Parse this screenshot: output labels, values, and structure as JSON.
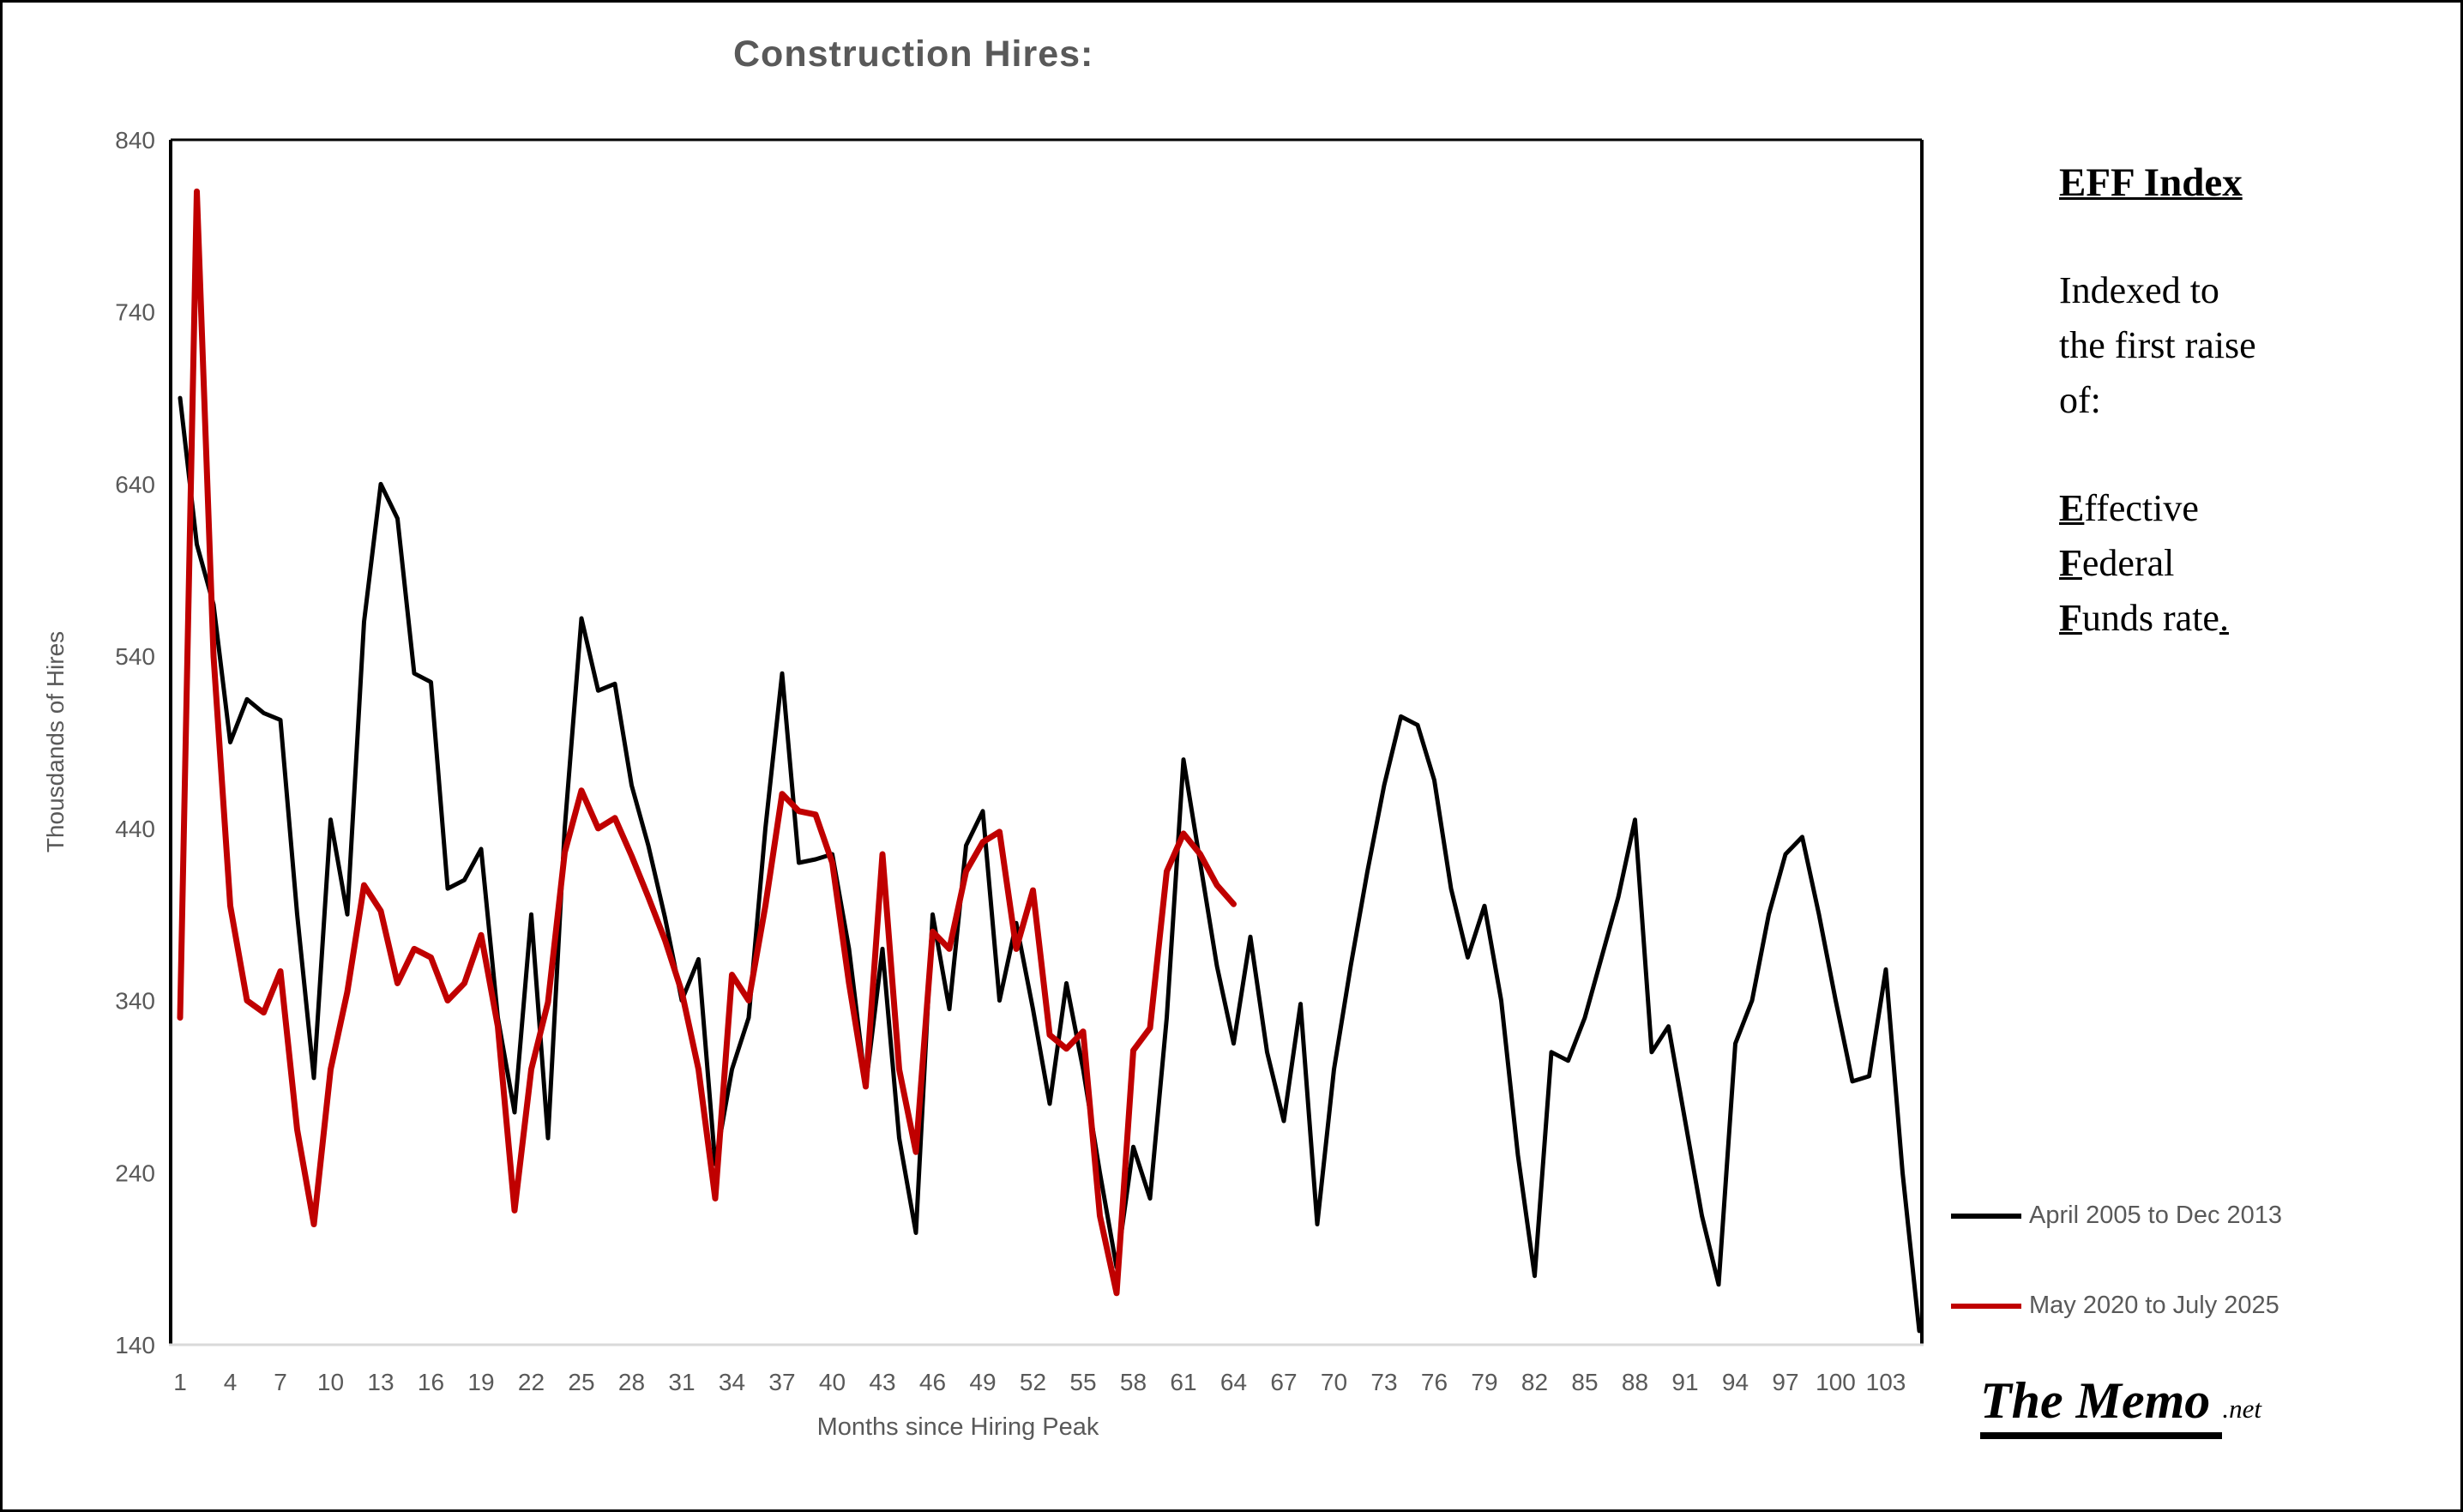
{
  "title": "Construction Hires:",
  "eff_note": {
    "heading": "EFF Index",
    "body_lines": [
      "Indexed to",
      "the first raise",
      "of:"
    ],
    "effective_lead": "E",
    "effective_rest": "ffective",
    "federal_lead": "F",
    "federal_rest": "ederal",
    "funds_lead": "F",
    "funds_rest": "unds rate",
    "period": "."
  },
  "legend": {
    "items": [
      {
        "label": "April 2005 to Dec 2013",
        "color": "#000000"
      },
      {
        "label": "May 2020 to July 2025",
        "color": "#C00000"
      }
    ]
  },
  "logo": {
    "main": "The Memo",
    "suffix": ".net"
  },
  "chart_data": {
    "type": "line",
    "title": "Construction Hires:",
    "xlabel": "Months since Hiring Peak",
    "ylabel": "Thousdands of Hires",
    "ylim": [
      140,
      840
    ],
    "xlim": [
      1,
      105
    ],
    "y_ticks": [
      840,
      740,
      640,
      540,
      440,
      340,
      240,
      140
    ],
    "x_ticks": [
      1,
      4,
      7,
      10,
      13,
      16,
      19,
      22,
      25,
      28,
      31,
      34,
      37,
      40,
      43,
      46,
      49,
      52,
      55,
      58,
      61,
      64,
      67,
      70,
      73,
      76,
      79,
      82,
      85,
      88,
      91,
      94,
      97,
      100,
      103
    ],
    "grid": false,
    "legend_position": "right",
    "axis_colors": {
      "text": "#595959",
      "bottom_line": "#D9D9D9",
      "border": "#000000"
    },
    "series": [
      {
        "name": "April 2005 to Dec 2013",
        "color": "#000000",
        "stroke_width": 5,
        "start_month": 1,
        "values": [
          690,
          605,
          570,
          490,
          515,
          507,
          503,
          390,
          295,
          445,
          390,
          560,
          640,
          620,
          530,
          525,
          405,
          410,
          428,
          330,
          275,
          390,
          260,
          440,
          562,
          520,
          524,
          465,
          430,
          388,
          340,
          364,
          245,
          300,
          330,
          440,
          530,
          420,
          422,
          425,
          370,
          290,
          370,
          260,
          205,
          390,
          335,
          430,
          450,
          340,
          385,
          335,
          280,
          350,
          300,
          240,
          185,
          255,
          225,
          330,
          480,
          420,
          360,
          315,
          377,
          310,
          270,
          338,
          210,
          300,
          360,
          415,
          465,
          505,
          500,
          468,
          405,
          365,
          395,
          340,
          250,
          180,
          310,
          305,
          330,
          365,
          400,
          445,
          310,
          325,
          270,
          215,
          175,
          315,
          340,
          390,
          425,
          435,
          390,
          340,
          293,
          296,
          358,
          240,
          148
        ]
      },
      {
        "name": "May 2020 to July 2025",
        "color": "#C00000",
        "stroke_width": 7,
        "start_month": 1,
        "values": [
          330,
          810,
          540,
          395,
          340,
          333,
          357,
          265,
          210,
          300,
          345,
          407,
          392,
          350,
          370,
          365,
          340,
          350,
          378,
          325,
          218,
          300,
          339,
          426,
          462,
          440,
          446,
          424,
          400,
          375,
          345,
          300,
          225,
          355,
          340,
          395,
          460,
          450,
          448,
          420,
          350,
          290,
          425,
          300,
          252,
          380,
          370,
          415,
          432,
          438,
          370,
          404,
          320,
          312,
          322,
          215,
          170,
          311,
          324,
          415,
          437,
          425,
          407,
          396
        ]
      }
    ]
  }
}
